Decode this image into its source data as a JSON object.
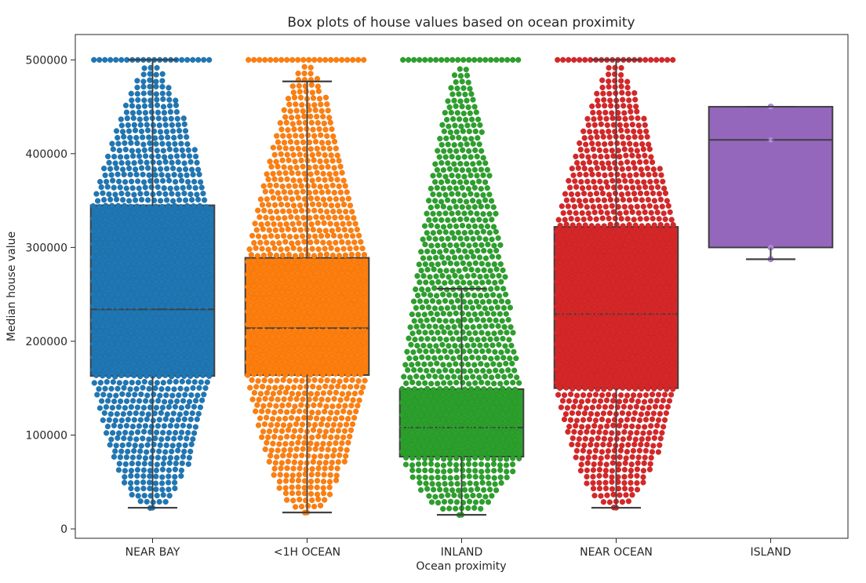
{
  "chart_data": {
    "type": "box",
    "title": "Box plots of house values based on ocean proximity",
    "xlabel": "Ocean proximity",
    "ylabel": "Median house value",
    "ylim": [
      -10000,
      527000
    ],
    "yticks": [
      0,
      100000,
      200000,
      300000,
      400000,
      500000
    ],
    "yticks_labels": [
      "0",
      "100000",
      "200000",
      "300000",
      "400000",
      "500000"
    ],
    "categories": [
      "NEAR BAY",
      "<1H OCEAN",
      "INLAND",
      "NEAR OCEAN",
      "ISLAND"
    ],
    "series": [
      {
        "category": "NEAR BAY",
        "color": "#1f77b4",
        "whisker_low": 22500,
        "q1": 163000,
        "median": 234000,
        "q3": 345000,
        "whisker_high": 500001,
        "min_point": 22500,
        "max_point": 500001,
        "swarm": true
      },
      {
        "category": "<1H OCEAN",
        "color": "#ff7f0e",
        "whisker_low": 17500,
        "q1": 164000,
        "median": 214000,
        "q3": 289000,
        "whisker_high": 477000,
        "min_point": 17500,
        "max_point": 500001,
        "swarm": true
      },
      {
        "category": "INLAND",
        "color": "#2ca02c",
        "whisker_low": 15000,
        "q1": 77000,
        "median": 108000,
        "q3": 149000,
        "whisker_high": 256000,
        "min_point": 15000,
        "max_point": 500001,
        "swarm": true
      },
      {
        "category": "NEAR OCEAN",
        "color": "#d62728",
        "whisker_low": 22500,
        "q1": 150000,
        "median": 229000,
        "q3": 322000,
        "whisker_high": 500001,
        "min_point": 22500,
        "max_point": 500001,
        "swarm": true
      },
      {
        "category": "ISLAND",
        "color": "#9467bd",
        "whisker_low": 287500,
        "q1": 300000,
        "median": 414700,
        "q3": 450000,
        "whisker_high": 450000,
        "min_point": 287500,
        "max_point": 450000,
        "swarm": false,
        "points": [
          287500,
          300000,
          414700,
          450000,
          450000
        ]
      }
    ]
  }
}
